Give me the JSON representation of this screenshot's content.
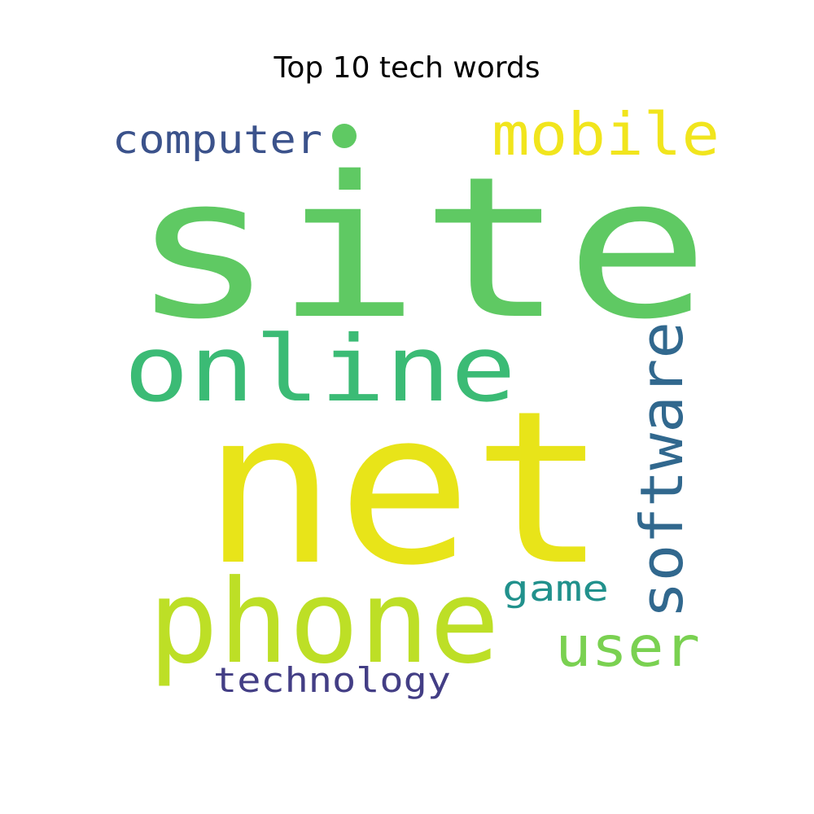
{
  "chart_data": {
    "type": "wordcloud",
    "title": "Top 10 tech words",
    "words": [
      {
        "text": "site",
        "color": "#5fc963"
      },
      {
        "text": "net",
        "color": "#e8e419"
      },
      {
        "text": "online",
        "color": "#3bbb75"
      },
      {
        "text": "phone",
        "color": "#bddf26"
      },
      {
        "text": "mobile",
        "color": "#f1e51d"
      },
      {
        "text": "computer",
        "color": "#3b528b"
      },
      {
        "text": "software",
        "color": "#31688e"
      },
      {
        "text": "user",
        "color": "#7ad151"
      },
      {
        "text": "game",
        "color": "#21918c"
      },
      {
        "text": "technology",
        "color": "#433e85"
      }
    ],
    "dot_color": "#5fc963"
  }
}
